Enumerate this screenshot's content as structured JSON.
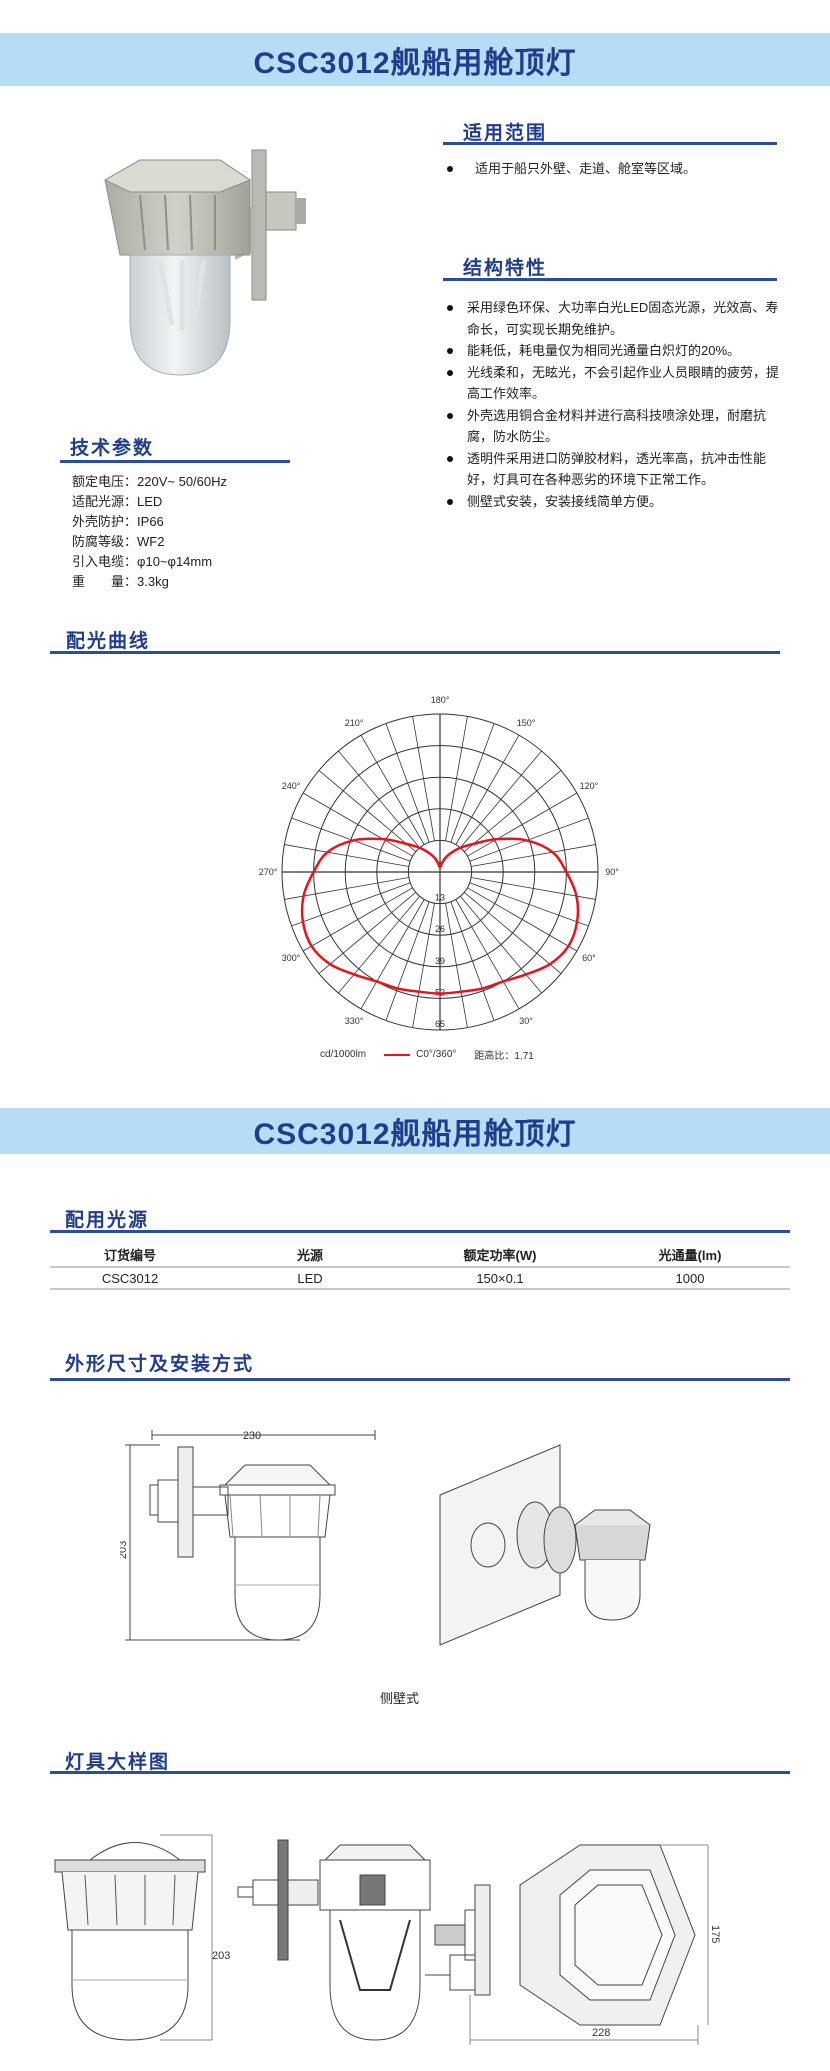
{
  "header": {
    "title": "CSC3012舰船用舱顶灯"
  },
  "scope": {
    "heading": "适用范围",
    "items": [
      "适用于船只外壁、走道、舱室等区域。"
    ]
  },
  "features": {
    "heading": "结构特性",
    "items": [
      "采用绿色环保、大功率白光LED固态光源，光效高、寿命长，可实现长期免维护。",
      "能耗低，耗电量仅为相同光通量白炽灯的20%。",
      "光线柔和，无眩光，不会引起作业人员眼睛的疲劳，提高工作效率。",
      "外壳选用铜合金材料并进行高科技喷涂处理，耐磨抗腐，防水防尘。",
      "透明件采用进口防弹胶材料，透光率高，抗冲击性能好，灯具可在各种恶劣的环境下正常工作。",
      "侧壁式安装，安装接线简单方便。"
    ]
  },
  "specs": {
    "heading": "技术参数",
    "items": [
      {
        "label": "额定电压",
        "value": "220V~ 50/60Hz"
      },
      {
        "label": "适配光源",
        "value": "LED"
      },
      {
        "label": "外壳防护",
        "value": "IP66"
      },
      {
        "label": "防腐等级",
        "value": "WF2"
      },
      {
        "label": "引入电缆",
        "value": "φ10~φ14mm"
      },
      {
        "label": "重　　量",
        "value": "3.3kg"
      }
    ]
  },
  "photometry": {
    "heading": "配光曲线"
  },
  "chart_data": {
    "type": "polar-line",
    "title": "",
    "radial_unit": "cd/1000lm",
    "radial_ticks": [
      0,
      13,
      26,
      39,
      52,
      65
    ],
    "radial_range": [
      0,
      65
    ],
    "angle_labels": [
      "30°",
      "60°",
      "90°",
      "120°",
      "150°",
      "180°",
      "210°",
      "240°",
      "270°",
      "300°",
      "330°"
    ],
    "angle_label_values": [
      30,
      60,
      90,
      120,
      150,
      180,
      210,
      240,
      270,
      300,
      330
    ],
    "angular_grid_step_deg": 10,
    "zero_direction": "bottom",
    "grid": true,
    "series": [
      {
        "name": "C0°/360°",
        "color": "#e8141b",
        "angles": [
          0,
          10,
          20,
          30,
          40,
          50,
          60,
          70,
          80,
          90,
          100,
          110,
          120,
          130,
          140,
          150,
          160,
          170,
          180,
          190,
          200,
          210,
          220,
          230,
          240,
          250,
          260,
          270,
          280,
          290,
          300,
          310,
          320,
          330,
          340,
          350
        ],
        "values": [
          50,
          50,
          51,
          52,
          55,
          59,
          61,
          60,
          57,
          52,
          47,
          38,
          27,
          18,
          13,
          9,
          6,
          3,
          2,
          3,
          6,
          9,
          13,
          18,
          27,
          38,
          47,
          52,
          57,
          60,
          61,
          59,
          55,
          52,
          51,
          50
        ]
      }
    ],
    "legend": {
      "unit_label": "cd/1000lm",
      "series_label": "C0°/360°",
      "ratio_label": "距高比：1.71",
      "placement": "bottom"
    }
  },
  "header2": {
    "title": "CSC3012舰船用舱顶灯"
  },
  "light_source": {
    "heading": "配用光源",
    "columns": [
      "订货编号",
      "光源",
      "额定功率(W)",
      "光通量(lm)"
    ],
    "rows": [
      [
        "CSC3012",
        "LED",
        "150×0.1",
        "1000"
      ]
    ]
  },
  "dimensions": {
    "heading": "外形尺寸及安装方式",
    "width_label": "230",
    "height_label": "203",
    "caption": "侧壁式"
  },
  "detail": {
    "heading": "灯具大样图",
    "height_label": "203",
    "hex_height_label": "175",
    "hex_width_label": "228"
  },
  "colors": {
    "band": "#b7dcf5",
    "heading": "#1f3d8c",
    "curve": "#e8141b"
  }
}
